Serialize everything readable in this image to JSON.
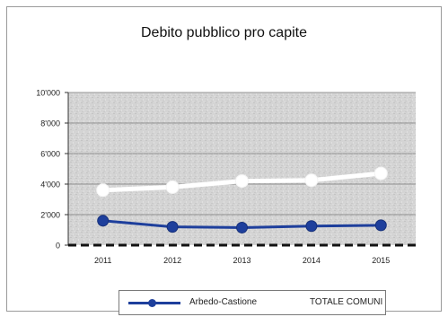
{
  "chart_data": {
    "type": "line",
    "title": "Debito pubblico pro capite",
    "categories": [
      "2011",
      "2012",
      "2013",
      "2014",
      "2015"
    ],
    "ylim": [
      0,
      10000
    ],
    "yticks": [
      "0",
      "2'000",
      "4'000",
      "6'000",
      "8'000",
      "10'000"
    ],
    "grid": true,
    "legend": "bottom",
    "series": [
      {
        "name": "Arbedo-Castione",
        "values": [
          1600,
          1200,
          1150,
          1250,
          1300
        ],
        "color": "#1e3f9c"
      },
      {
        "name": "TOTALE COMUNI",
        "values": [
          3600,
          3800,
          4200,
          4250,
          4700
        ],
        "color": "#ffffff"
      }
    ]
  }
}
